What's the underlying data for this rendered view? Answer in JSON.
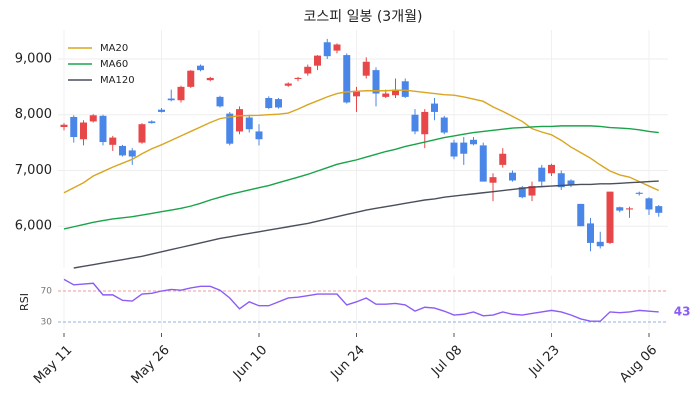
{
  "chart_data": [
    {
      "type": "candlestick",
      "title": "코스피 일봉 (3개월)",
      "categories": [
        "May 11",
        null,
        null,
        null,
        null,
        null,
        null,
        null,
        null,
        null,
        "May 26",
        null,
        null,
        null,
        null,
        null,
        null,
        null,
        null,
        null,
        "Jun 10",
        null,
        null,
        null,
        null,
        null,
        null,
        null,
        null,
        null,
        "Jun 24",
        null,
        null,
        null,
        null,
        null,
        null,
        null,
        null,
        null,
        "Jul 08",
        null,
        null,
        null,
        null,
        null,
        null,
        null,
        null,
        null,
        "Jul 23",
        null,
        null,
        null,
        null,
        null,
        null,
        null,
        null,
        null,
        "Aug 06",
        null
      ],
      "open": [
        7780,
        7960,
        7560,
        7880,
        7980,
        7460,
        7440,
        7360,
        7500,
        7880,
        8090,
        8290,
        8260,
        8500,
        8880,
        8620,
        8320,
        8020,
        7700,
        7950,
        7700,
        8300,
        8280,
        8520,
        8640,
        8740,
        8880,
        9300,
        9150,
        9070,
        8330,
        8700,
        8800,
        8320,
        8350,
        8600,
        8000,
        7650,
        8200,
        7950,
        7500,
        7500,
        7550,
        7450,
        6780,
        7100,
        6960,
        6700,
        6550,
        7050,
        6950,
        6950,
        6820,
        6400,
        6050,
        5720,
        5700,
        6340,
        6300,
        6600,
        6500,
        6360
      ],
      "high": [
        7850,
        7990,
        7900,
        8010,
        8000,
        7620,
        7460,
        7400,
        7850,
        7900,
        8120,
        8450,
        8520,
        8800,
        8900,
        8680,
        8340,
        8050,
        8150,
        8000,
        7830,
        8330,
        8300,
        8580,
        8680,
        8900,
        9070,
        9360,
        9280,
        9100,
        8500,
        9030,
        8850,
        8450,
        8650,
        8650,
        8100,
        8100,
        8300,
        7980,
        7550,
        7600,
        7600,
        7500,
        6950,
        7400,
        7000,
        6720,
        6800,
        7100,
        7120,
        7000,
        6840,
        6400,
        6150,
        5900,
        6620,
        6350,
        6350,
        6620,
        6520,
        6380
      ],
      "low": [
        7720,
        7500,
        7450,
        7860,
        7450,
        7350,
        7250,
        7100,
        7480,
        7840,
        8040,
        8240,
        8220,
        8480,
        8780,
        8600,
        8130,
        7450,
        7650,
        7680,
        7450,
        8100,
        8110,
        8500,
        8600,
        8700,
        8800,
        9000,
        9100,
        8200,
        8050,
        8650,
        8150,
        8300,
        8300,
        8300,
        7650,
        7400,
        7900,
        7650,
        7200,
        7100,
        7450,
        6800,
        6450,
        7050,
        6800,
        6500,
        6450,
        6720,
        6900,
        6650,
        6700,
        6000,
        5550,
        5600,
        5680,
        6250,
        6150,
        6550,
        6200,
        6170
      ],
      "close": [
        7820,
        7600,
        7860,
        7990,
        7510,
        7590,
        7270,
        7250,
        7830,
        7850,
        8050,
        8260,
        8500,
        8790,
        8800,
        8660,
        8150,
        7480,
        8100,
        7740,
        7560,
        8120,
        8130,
        8560,
        8660,
        8860,
        9060,
        9050,
        9260,
        8220,
        8430,
        8950,
        8380,
        8380,
        8450,
        8320,
        7700,
        8050,
        8050,
        7680,
        7250,
        7300,
        7470,
        6800,
        6880,
        7300,
        6820,
        6520,
        6720,
        6800,
        7100,
        6700,
        6740,
        6000,
        5700,
        5640,
        6620,
        6280,
        6320,
        6580,
        6300,
        6240
      ],
      "up_color": "#e8474a",
      "down_color": "#4a86e8",
      "series": [
        {
          "name": "MA20",
          "color": "#daa520",
          "values": [
            6600,
            6690,
            6780,
            6900,
            6980,
            7060,
            7130,
            7200,
            7300,
            7390,
            7460,
            7540,
            7620,
            7700,
            7780,
            7860,
            7930,
            7960,
            7980,
            7985,
            7990,
            8000,
            8010,
            8030,
            8100,
            8180,
            8250,
            8320,
            8380,
            8410,
            8420,
            8430,
            8430,
            8430,
            8440,
            8440,
            8420,
            8400,
            8380,
            8360,
            8350,
            8320,
            8280,
            8240,
            8140,
            8060,
            7970,
            7880,
            7750,
            7690,
            7640,
            7540,
            7420,
            7320,
            7220,
            7100,
            6990,
            6920,
            6880,
            6800,
            6720,
            6640
          ]
        },
        {
          "name": "MA60",
          "color": "#1aa34a",
          "values": [
            5950,
            5990,
            6030,
            6070,
            6100,
            6130,
            6150,
            6170,
            6200,
            6230,
            6260,
            6290,
            6320,
            6360,
            6410,
            6470,
            6520,
            6570,
            6610,
            6650,
            6690,
            6730,
            6780,
            6830,
            6880,
            6930,
            6990,
            7050,
            7110,
            7150,
            7190,
            7240,
            7290,
            7340,
            7380,
            7430,
            7470,
            7510,
            7550,
            7590,
            7620,
            7650,
            7680,
            7700,
            7720,
            7740,
            7760,
            7770,
            7780,
            7790,
            7790,
            7800,
            7800,
            7800,
            7800,
            7790,
            7770,
            7760,
            7750,
            7730,
            7700,
            7680
          ]
        },
        {
          "name": "MA120",
          "color": "#4a4f5c",
          "values": [
            null,
            5250,
            5280,
            5310,
            5340,
            5370,
            5400,
            5430,
            5460,
            5500,
            5540,
            5580,
            5620,
            5660,
            5700,
            5740,
            5780,
            5810,
            5840,
            5870,
            5900,
            5930,
            5960,
            5990,
            6020,
            6050,
            6090,
            6130,
            6170,
            6210,
            6250,
            6290,
            6320,
            6350,
            6380,
            6410,
            6440,
            6470,
            6490,
            6520,
            6540,
            6560,
            6580,
            6600,
            6620,
            6640,
            6660,
            6680,
            6700,
            6710,
            6720,
            6730,
            6740,
            6750,
            6750,
            6760,
            6760,
            6770,
            6780,
            6790,
            6800,
            6810
          ]
        }
      ],
      "ylim": [
        5250,
        9520
      ],
      "yticks": [
        {
          "value": 6000,
          "label": "6,000"
        },
        {
          "value": 7000,
          "label": "7,000"
        },
        {
          "value": 8000,
          "label": "8,000"
        },
        {
          "value": 9000,
          "label": "9,000"
        }
      ],
      "grid": true,
      "legend": "upper left"
    },
    {
      "type": "line",
      "ylabel": "RSI",
      "color": "#8b5cf6",
      "values": [
        85,
        78,
        79,
        80,
        65,
        65,
        58,
        57,
        66,
        67,
        70,
        72,
        71,
        74,
        76,
        76,
        71,
        61,
        47,
        56,
        51,
        51,
        56,
        61,
        62,
        64,
        66,
        66,
        66,
        52,
        56,
        61,
        53,
        53,
        54,
        52,
        44,
        49,
        48,
        44,
        39,
        40,
        43,
        38,
        39,
        43,
        40,
        39,
        41,
        43,
        45,
        43,
        39,
        34,
        31,
        31,
        43,
        42,
        43,
        45,
        44,
        43
      ],
      "ylim": [
        20,
        90
      ],
      "yticks": [
        30,
        70
      ],
      "ytick_colors": [
        "#6a9ad8",
        "#e87a7a"
      ],
      "grid": true
    }
  ]
}
